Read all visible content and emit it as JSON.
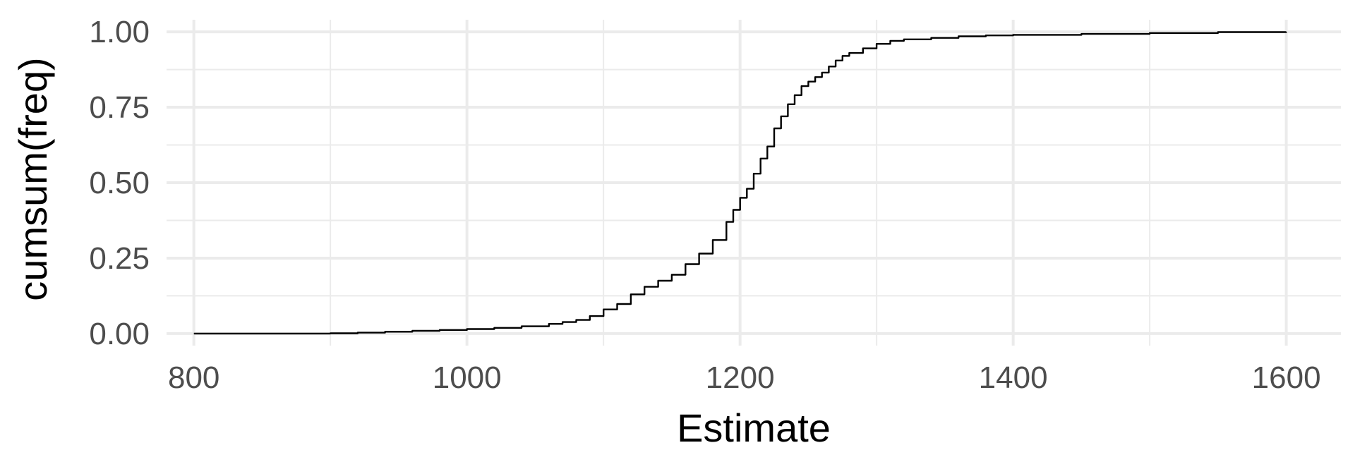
{
  "chart_data": {
    "type": "line",
    "step": true,
    "title": "",
    "xlabel": "Estimate",
    "ylabel": "cumsum(freq)",
    "xlim": [
      780,
      1640
    ],
    "ylim": [
      -0.04,
      1.04
    ],
    "x_ticks": [
      800,
      1000,
      1200,
      1400,
      1600
    ],
    "x_tick_labels": [
      "800",
      "1000",
      "1200",
      "1400",
      "1600"
    ],
    "x_minor_ticks": [
      900,
      1100,
      1300,
      1500
    ],
    "y_ticks": [
      0,
      0.25,
      0.5,
      0.75,
      1
    ],
    "y_tick_labels": [
      "0.00",
      "0.25",
      "0.50",
      "0.75",
      "1.00"
    ],
    "y_minor_ticks": [
      0.125,
      0.375,
      0.625,
      0.875
    ],
    "grid": true,
    "legend": "none",
    "colors": {
      "line": "#000000",
      "grid": "#ebebeb",
      "tick_text": "#4d4d4d",
      "title_text": "#000000",
      "background": "#ffffff"
    },
    "series": [
      {
        "x": [
          800,
          850,
          900,
          920,
          940,
          960,
          980,
          1000,
          1020,
          1040,
          1060,
          1070,
          1080,
          1090,
          1100,
          1110,
          1120,
          1130,
          1140,
          1150,
          1160,
          1170,
          1180,
          1190,
          1195,
          1200,
          1205,
          1210,
          1215,
          1220,
          1225,
          1230,
          1235,
          1240,
          1245,
          1250,
          1255,
          1260,
          1265,
          1270,
          1275,
          1280,
          1290,
          1300,
          1310,
          1320,
          1340,
          1360,
          1380,
          1400,
          1450,
          1500,
          1550,
          1600
        ],
        "y": [
          0,
          0,
          0.001,
          0.003,
          0.006,
          0.009,
          0.012,
          0.015,
          0.019,
          0.024,
          0.032,
          0.038,
          0.045,
          0.058,
          0.08,
          0.098,
          0.13,
          0.155,
          0.175,
          0.195,
          0.23,
          0.265,
          0.31,
          0.37,
          0.41,
          0.45,
          0.48,
          0.53,
          0.58,
          0.62,
          0.68,
          0.72,
          0.76,
          0.79,
          0.82,
          0.835,
          0.85,
          0.865,
          0.885,
          0.905,
          0.92,
          0.93,
          0.945,
          0.96,
          0.97,
          0.975,
          0.98,
          0.985,
          0.988,
          0.99,
          0.993,
          0.996,
          0.999,
          1
        ]
      }
    ]
  }
}
